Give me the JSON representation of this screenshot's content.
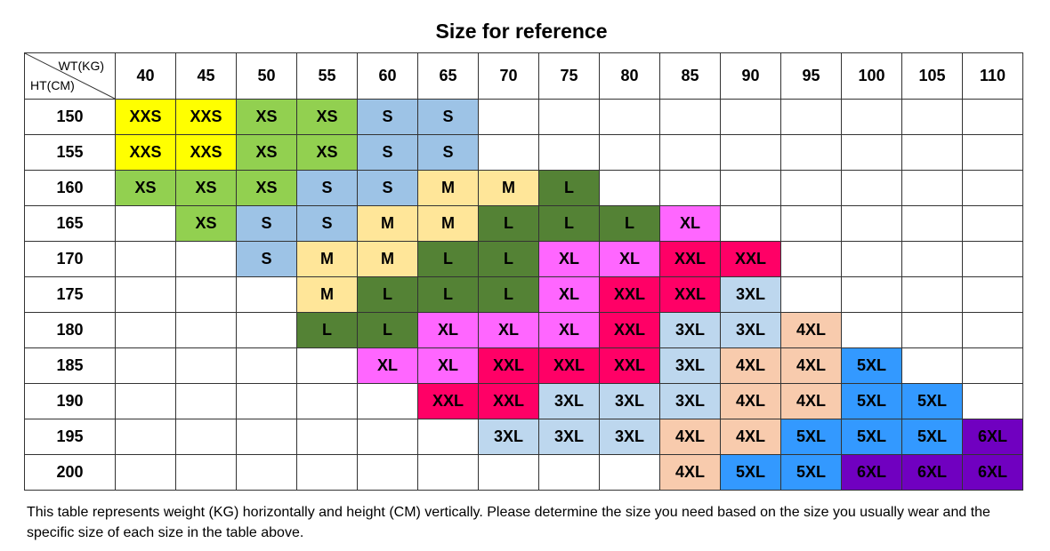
{
  "title": "Size for reference",
  "corner": {
    "weight_label": "WT(KG)",
    "height_label": "HT(CM)"
  },
  "weights": [
    "40",
    "45",
    "50",
    "55",
    "60",
    "65",
    "70",
    "75",
    "80",
    "85",
    "90",
    "95",
    "100",
    "105",
    "110"
  ],
  "rows": [
    {
      "height": "150",
      "cells": [
        "XXS",
        "XXS",
        "XS",
        "XS",
        "S",
        "S",
        "",
        "",
        "",
        "",
        "",
        "",
        "",
        "",
        ""
      ]
    },
    {
      "height": "155",
      "cells": [
        "XXS",
        "XXS",
        "XS",
        "XS",
        "S",
        "S",
        "",
        "",
        "",
        "",
        "",
        "",
        "",
        "",
        ""
      ]
    },
    {
      "height": "160",
      "cells": [
        "XS",
        "XS",
        "XS",
        "S",
        "S",
        "M",
        "M",
        "L",
        "",
        "",
        "",
        "",
        "",
        "",
        ""
      ]
    },
    {
      "height": "165",
      "cells": [
        "",
        "XS",
        "S",
        "S",
        "M",
        "M",
        "L",
        "L",
        "L",
        "XL",
        "",
        "",
        "",
        "",
        ""
      ]
    },
    {
      "height": "170",
      "cells": [
        "",
        "",
        "S",
        "M",
        "M",
        "L",
        "L",
        "XL",
        "XL",
        "XXL",
        "XXL",
        "",
        "",
        "",
        ""
      ]
    },
    {
      "height": "175",
      "cells": [
        "",
        "",
        "",
        "M",
        "L",
        "L",
        "L",
        "XL",
        "XXL",
        "XXL",
        "3XL",
        "",
        "",
        "",
        ""
      ]
    },
    {
      "height": "180",
      "cells": [
        "",
        "",
        "",
        "L",
        "L",
        "XL",
        "XL",
        "XL",
        "XXL",
        "3XL",
        "3XL",
        "4XL",
        "",
        "",
        ""
      ]
    },
    {
      "height": "185",
      "cells": [
        "",
        "",
        "",
        "",
        "XL",
        "XL",
        "XXL",
        "XXL",
        "XXL",
        "3XL",
        "4XL",
        "4XL",
        "5XL",
        "",
        ""
      ]
    },
    {
      "height": "190",
      "cells": [
        "",
        "",
        "",
        "",
        "",
        "XXL",
        "XXL",
        "3XL",
        "3XL",
        "3XL",
        "4XL",
        "4XL",
        "5XL",
        "5XL",
        ""
      ]
    },
    {
      "height": "195",
      "cells": [
        "",
        "",
        "",
        "",
        "",
        "",
        "3XL",
        "3XL",
        "3XL",
        "4XL",
        "4XL",
        "5XL",
        "5XL",
        "5XL",
        "6XL"
      ]
    },
    {
      "height": "200",
      "cells": [
        "",
        "",
        "",
        "",
        "",
        "",
        "",
        "",
        "",
        "4XL",
        "5XL",
        "5XL",
        "6XL",
        "6XL",
        "6XL"
      ]
    }
  ],
  "size_colors": {
    "XXS": "#FFFF00",
    "XS": "#92D050",
    "S": "#9DC3E6",
    "M": "#FFE699",
    "L": "#548235",
    "XL": "#FF66FF",
    "XXL": "#FF0066",
    "3XL": "#BDD7EE",
    "4XL": "#F8CBAD",
    "5XL": "#3399FF",
    "6XL": "#7000C0"
  },
  "note": "This table represents weight (KG) horizontally and height (CM) vertically. Please determine the size you need based on the size you usually wear and the specific size of each size in the table above."
}
